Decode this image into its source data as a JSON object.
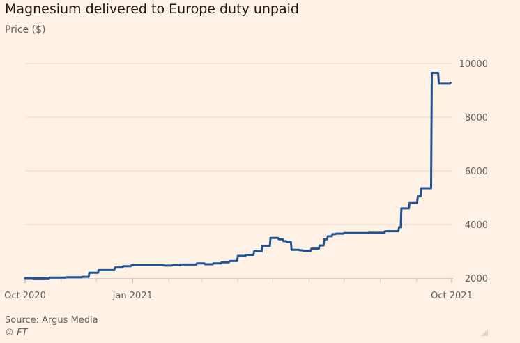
{
  "title": "Magnesium delivered to Europe duty unpaid",
  "subtitle": "Price ($)",
  "source": "Source: Argus Media",
  "copyright": "© FT",
  "colors": {
    "background": "#fff1e5",
    "line": "#1f5392",
    "grid": "#e9dcd0",
    "axis": "#66605c"
  },
  "chart_data": {
    "type": "line",
    "title": "Magnesium delivered to Europe duty unpaid",
    "ylabel": "Price ($)",
    "xlabel": "",
    "ylim": [
      2000,
      10000
    ],
    "xlim": [
      "2020-10-01",
      "2021-10-01"
    ],
    "y_ticks": [
      2000,
      4000,
      6000,
      8000,
      10000
    ],
    "y_tick_labels": [
      "2000",
      "4000",
      "6000",
      "8000",
      "10000"
    ],
    "x_tick_labels": [
      {
        "date": "2020-10-01",
        "label": "Oct 2020"
      },
      {
        "date": "2021-01-01",
        "label": "Jan 2021"
      },
      {
        "date": "2021-10-01",
        "label": "Oct 2021"
      }
    ],
    "minor_ticks": [
      "2020-11-01",
      "2020-12-01",
      "2021-02-01",
      "2021-03-01",
      "2021-04-01",
      "2021-05-01",
      "2021-06-01",
      "2021-07-01",
      "2021-08-01",
      "2021-09-01"
    ],
    "grid": true,
    "y_axis_position": "right",
    "series": [
      {
        "x": [
          "2020-10-01",
          "2020-10-08",
          "2020-10-22",
          "2020-11-05",
          "2020-11-19",
          "2020-11-25",
          "2020-12-03",
          "2020-12-17",
          "2020-12-24",
          "2020-12-31",
          "2021-01-14",
          "2021-01-28",
          "2021-02-04",
          "2021-02-11",
          "2021-02-25",
          "2021-03-04",
          "2021-03-11",
          "2021-03-18",
          "2021-03-25",
          "2021-04-01",
          "2021-04-08",
          "2021-04-15",
          "2021-04-22",
          "2021-04-29",
          "2021-05-06",
          "2021-05-10",
          "2021-05-13",
          "2021-05-17",
          "2021-05-20",
          "2021-05-24",
          "2021-05-27",
          "2021-06-03",
          "2021-06-10",
          "2021-06-14",
          "2021-06-17",
          "2021-06-21",
          "2021-06-24",
          "2021-07-01",
          "2021-07-08",
          "2021-07-15",
          "2021-07-22",
          "2021-07-29",
          "2021-08-05",
          "2021-08-12",
          "2021-08-17",
          "2021-08-19",
          "2021-08-26",
          "2021-08-30",
          "2021-09-02",
          "2021-09-05",
          "2021-09-09",
          "2021-09-14",
          "2021-09-20",
          "2021-09-24",
          "2021-09-30"
        ],
        "y": [
          2000,
          1990,
          2020,
          2030,
          2050,
          2200,
          2300,
          2400,
          2450,
          2480,
          2480,
          2470,
          2480,
          2510,
          2550,
          2520,
          2550,
          2590,
          2640,
          2830,
          2870,
          3000,
          3200,
          3500,
          3450,
          3380,
          3350,
          3060,
          3060,
          3040,
          3020,
          3100,
          3220,
          3450,
          3560,
          3640,
          3660,
          3680,
          3680,
          3680,
          3690,
          3690,
          3750,
          3750,
          3900,
          4600,
          4800,
          4800,
          5050,
          5350,
          5350,
          9650,
          9250,
          9250,
          9280
        ]
      }
    ]
  }
}
